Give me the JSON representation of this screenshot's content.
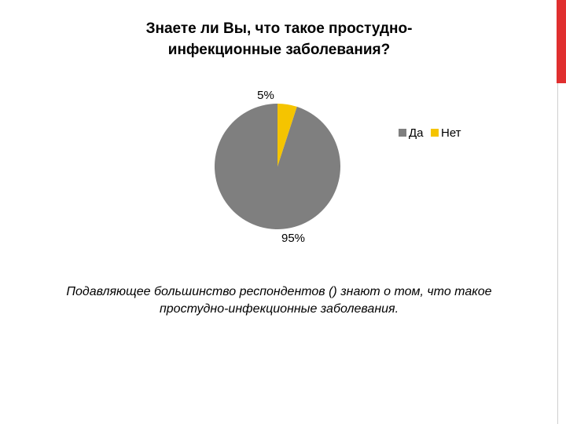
{
  "chart_data": {
    "type": "pie",
    "title": "Знаете ли Вы, что такое простудно-инфекционные заболевания?",
    "categories": [
      "Да",
      "Нет"
    ],
    "values": [
      95,
      5
    ],
    "data_labels": [
      "95%",
      "5%"
    ],
    "colors": [
      "#7f7f7f",
      "#f5c400"
    ],
    "legend_position": "right"
  },
  "caption": "Подавляющее большинство респондентов () знают о том, что такое простудно-инфекционные заболевания.",
  "colors": {
    "accent": "#e02f2f"
  }
}
